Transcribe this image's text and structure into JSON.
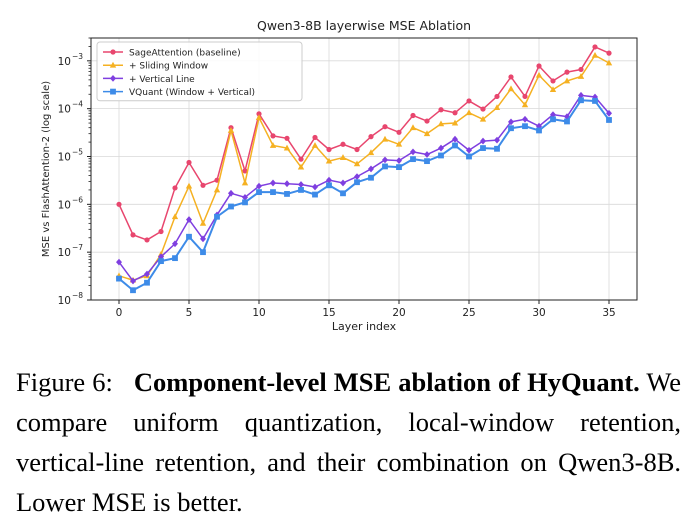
{
  "chart_data": {
    "type": "line",
    "title": "Qwen3-8B layerwise MSE Ablation",
    "xlabel": "Layer index",
    "ylabel": "MSE vs FlashAttention-2 (log scale)",
    "y_scale": "log",
    "xlim": [
      -2,
      37
    ],
    "ylim": [
      1e-08,
      0.003
    ],
    "x_ticks": [
      0,
      5,
      10,
      15,
      20,
      25,
      30,
      35
    ],
    "x_tick_labels": [
      "0",
      "5",
      "10",
      "15",
      "20",
      "25",
      "30",
      "35"
    ],
    "y_tick_labels": [
      {
        "base": "10",
        "exp": "−8",
        "value": 1e-08
      },
      {
        "base": "10",
        "exp": "−7",
        "value": 1e-07
      },
      {
        "base": "10",
        "exp": "−6",
        "value": 1e-06
      },
      {
        "base": "10",
        "exp": "−5",
        "value": 1e-05
      },
      {
        "base": "10",
        "exp": "−4",
        "value": 0.0001
      },
      {
        "base": "10",
        "exp": "−3",
        "value": 0.001
      }
    ],
    "grid": true,
    "legend_position": "top-left",
    "x": [
      0,
      1,
      2,
      3,
      4,
      5,
      6,
      7,
      8,
      9,
      10,
      11,
      12,
      13,
      14,
      15,
      16,
      17,
      18,
      19,
      20,
      21,
      22,
      23,
      24,
      25,
      26,
      27,
      28,
      29,
      30,
      31,
      32,
      33,
      34,
      35
    ],
    "series": [
      {
        "name": "SageAttention (baseline)",
        "color": "#e8466e",
        "marker": "circle",
        "values": [
          1e-06,
          2.3e-07,
          1.8e-07,
          2.7e-07,
          2.2e-06,
          7.5e-06,
          2.5e-06,
          3.2e-06,
          4e-05,
          5e-06,
          7.8e-05,
          2.7e-05,
          2.4e-05,
          8.8e-06,
          2.5e-05,
          1.4e-05,
          1.8e-05,
          1.4e-05,
          2.6e-05,
          4.2e-05,
          3.2e-05,
          7.2e-05,
          5.5e-05,
          9.5e-05,
          8.2e-05,
          0.000145,
          9.8e-05,
          0.00018,
          0.00046,
          0.00018,
          0.00078,
          0.00038,
          0.00058,
          0.00066,
          0.00195,
          0.00145
        ]
      },
      {
        "name": "+ Sliding Window",
        "color": "#f5b122",
        "marker": "triangle",
        "values": [
          3.2e-08,
          2.6e-08,
          3.2e-08,
          9e-08,
          5.5e-07,
          2.4e-06,
          4e-07,
          2e-06,
          3.5e-05,
          2.8e-06,
          6.5e-05,
          1.7e-05,
          1.5e-05,
          6e-06,
          1.7e-05,
          8e-06,
          9.5e-06,
          7e-06,
          1.2e-05,
          2.3e-05,
          1.8e-05,
          4e-05,
          3e-05,
          4.8e-05,
          5e-05,
          8.2e-05,
          6e-05,
          0.000105,
          0.00026,
          0.00012,
          0.0005,
          0.00025,
          0.00038,
          0.00047,
          0.0013,
          0.0009
        ]
      },
      {
        "name": "+ Vertical Line",
        "color": "#7f3fe0",
        "marker": "diamond",
        "values": [
          6.2e-08,
          2.5e-08,
          3.5e-08,
          8e-08,
          1.5e-07,
          4.8e-07,
          1.9e-07,
          6e-07,
          1.7e-06,
          1.4e-06,
          2.4e-06,
          2.8e-06,
          2.7e-06,
          2.6e-06,
          2.3e-06,
          3.2e-06,
          2.8e-06,
          3.8e-06,
          5.5e-06,
          8.5e-06,
          8.2e-06,
          1.25e-05,
          1.1e-05,
          1.5e-05,
          2.3e-05,
          1.35e-05,
          2.1e-05,
          2.2e-05,
          5.3e-05,
          6e-05,
          4.3e-05,
          7.5e-05,
          6.8e-05,
          0.00019,
          0.000175,
          8e-05
        ]
      },
      {
        "name": "VQuant (Window + Vertical)",
        "color": "#3d8be8",
        "marker": "square",
        "values": [
          2.8e-08,
          1.6e-08,
          2.3e-08,
          6.5e-08,
          7.5e-08,
          2.1e-07,
          1e-07,
          5.5e-07,
          9e-07,
          1.1e-06,
          1.8e-06,
          1.8e-06,
          1.65e-06,
          2e-06,
          1.6e-06,
          2.5e-06,
          1.7e-06,
          2.9e-06,
          3.6e-06,
          6.2e-06,
          6e-06,
          8.8e-06,
          8e-06,
          1.05e-05,
          1.7e-05,
          1e-05,
          1.5e-05,
          1.45e-05,
          3.9e-05,
          4.3e-05,
          3.5e-05,
          6e-05,
          5.4e-05,
          0.00015,
          0.000145,
          5.8e-05
        ]
      }
    ]
  },
  "caption": {
    "label": "Figure 6:",
    "bold": "Component-level MSE ablation of HyQuant.",
    "text": "We compare uniform quantization, local-window retention, vertical-line retention, and their combination on Qwen3-8B. Lower MSE is better."
  }
}
